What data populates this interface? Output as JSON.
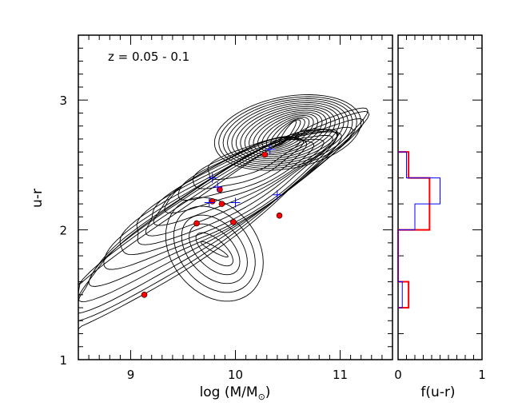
{
  "colors": {
    "axes": "#000000",
    "contours": "#000000",
    "red_points": "#ff0000",
    "blue_points": "#0000ff",
    "hist_red": "#ff0000",
    "hist_blue": "#0000ff"
  },
  "chart_data": [
    {
      "type": "scatter",
      "subtype": "contour-with-points",
      "annotation": "z = 0.05 - 0.1",
      "xlabel": "log (M/M",
      "xlabel_sub": "⊙",
      "xlabel_close": ")",
      "ylabel": "u-r",
      "xlim": [
        8.5,
        11.5
      ],
      "ylim": [
        1.0,
        3.5
      ],
      "x_ticks": [
        9,
        10,
        11
      ],
      "x_tick_labels": [
        "9",
        "10",
        "11"
      ],
      "y_ticks": [
        1,
        2,
        3
      ],
      "y_tick_labels": [
        "1",
        "2",
        "3"
      ],
      "grid": false,
      "contours": {
        "red_peak": {
          "x": 10.5,
          "y": 2.8
        },
        "blue_peak": {
          "x": 9.8,
          "y": 1.85
        }
      },
      "series": [
        {
          "marker": "filled-dot",
          "color": "red",
          "points": [
            {
              "x": 9.13,
              "y": 1.5
            },
            {
              "x": 9.63,
              "y": 2.05
            },
            {
              "x": 9.78,
              "y": 2.22
            },
            {
              "x": 9.85,
              "y": 2.31
            },
            {
              "x": 9.87,
              "y": 2.2
            },
            {
              "x": 9.98,
              "y": 2.06
            },
            {
              "x": 10.28,
              "y": 2.58
            },
            {
              "x": 10.42,
              "y": 2.11
            }
          ]
        },
        {
          "marker": "plus",
          "color": "blue",
          "points": [
            {
              "x": 9.75,
              "y": 2.21
            },
            {
              "x": 9.78,
              "y": 2.4
            },
            {
              "x": 9.83,
              "y": 2.33
            },
            {
              "x": 10.0,
              "y": 2.21
            },
            {
              "x": 10.33,
              "y": 2.62
            },
            {
              "x": 10.4,
              "y": 2.27
            }
          ]
        }
      ]
    },
    {
      "type": "bar",
      "subtype": "horizontal-step-histogram",
      "xlabel": "f(u-r)",
      "xlim": [
        0,
        1
      ],
      "ylim": [
        1.0,
        3.5
      ],
      "x_ticks": [
        0,
        1
      ],
      "x_tick_labels": [
        "0",
        "1"
      ],
      "bin_edges": [
        1.4,
        1.6,
        1.8,
        2.0,
        2.2,
        2.4,
        2.6
      ],
      "series": [
        {
          "color": "red",
          "values": [
            0.125,
            0,
            0,
            0.375,
            0.375,
            0.125
          ]
        },
        {
          "color": "blue",
          "values": [
            0.05,
            0,
            0,
            0.2,
            0.5,
            0.1
          ]
        }
      ]
    }
  ]
}
